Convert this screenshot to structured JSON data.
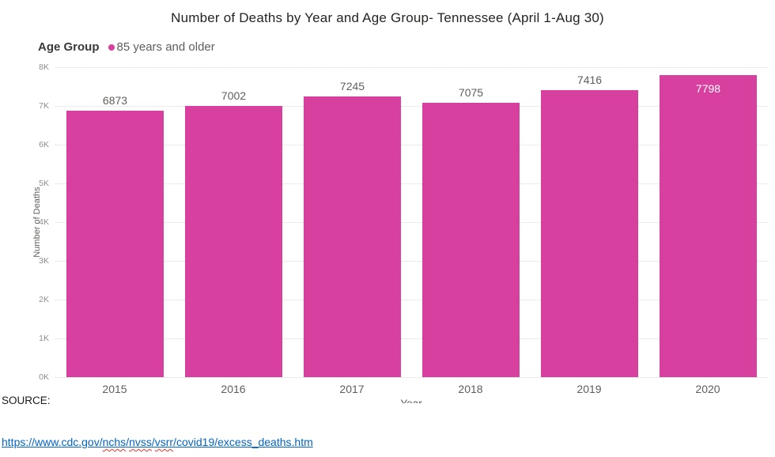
{
  "page": {
    "title": "Number of Deaths by Year and Age Group- Tennessee (April 1-Aug 30)"
  },
  "legend": {
    "title": "Age Group",
    "items": [
      {
        "label": "85 years and older",
        "color": "#d8409f"
      }
    ]
  },
  "chart_data": {
    "type": "bar",
    "title": "Number of Deaths by Year and Age Group- Tennessee (April 1-Aug 30)",
    "series_name": "85 years and older",
    "categories": [
      "2015",
      "2016",
      "2017",
      "2018",
      "2019",
      "2020"
    ],
    "values": [
      6873,
      7002,
      7245,
      7075,
      7416,
      7798
    ],
    "data_labels": [
      "6873",
      "7002",
      "7245",
      "7075",
      "7416",
      "7798"
    ],
    "xlabel": "Year",
    "ylabel": "Number of Deaths",
    "ylim": [
      0,
      8000
    ],
    "ytick_step": 1000,
    "ytick_labels": [
      "0K",
      "1K",
      "2K",
      "3K",
      "4K",
      "5K",
      "6K",
      "7K",
      "8K"
    ],
    "grid": true,
    "gridline_style": "dotted",
    "legend_position": "top-left",
    "bar_color": "#d8409f",
    "last_label_inside_bar": true
  },
  "footer": {
    "source_label": "SOURCE:",
    "link": {
      "text": "https://www.cdc.gov/nchs/nvss/vsrr/covid19/excess_deaths.htm",
      "color": "#0563c1",
      "segments": [
        {
          "text": "https://www.cdc.gov/",
          "squiggle": false
        },
        {
          "text": "nchs",
          "squiggle": true
        },
        {
          "text": "/",
          "squiggle": false
        },
        {
          "text": "nvss",
          "squiggle": true
        },
        {
          "text": "/",
          "squiggle": false
        },
        {
          "text": "vsrr",
          "squiggle": true
        },
        {
          "text": "/covid19/excess_deaths.htm",
          "squiggle": false
        }
      ]
    }
  }
}
